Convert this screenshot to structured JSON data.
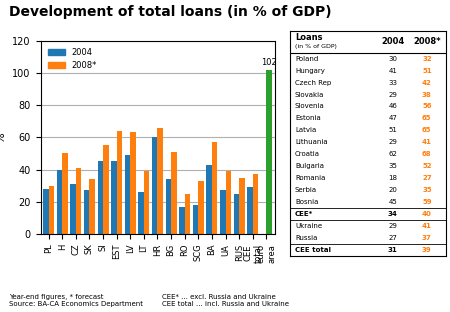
{
  "chart_data": {
    "type": "bar",
    "title": "Development of total loans (in % of GDP)",
    "ylabel": "%",
    "categories": [
      "PL",
      "H",
      "CZ",
      "SK",
      "SI",
      "EST",
      "LV",
      "LT",
      "HR",
      "BG",
      "RO",
      "SCG",
      "BA",
      "UA",
      "RUS",
      "CEE\ntotal",
      "euro\narea"
    ],
    "series": [
      {
        "name": "2004",
        "color": "#1f77b4",
        "values": [
          28,
          40,
          31,
          27,
          45,
          45,
          49,
          26,
          60,
          34,
          17,
          18,
          43,
          27,
          25,
          29,
          0
        ]
      },
      {
        "name": "2008*",
        "color": "#ff7f0e",
        "colors": [
          "#ff7f0e",
          "#ff7f0e",
          "#ff7f0e",
          "#ff7f0e",
          "#ff7f0e",
          "#ff7f0e",
          "#ff7f0e",
          "#ff7f0e",
          "#ff7f0e",
          "#ff7f0e",
          "#ff7f0e",
          "#ff7f0e",
          "#ff7f0e",
          "#ff7f0e",
          "#ff7f0e",
          "#ff7f0e",
          "#2ca02c"
        ],
        "values": [
          30,
          50,
          41,
          34,
          55,
          64,
          63,
          39,
          66,
          51,
          25,
          33,
          57,
          39,
          35,
          37,
          102
        ]
      }
    ],
    "ylim": [
      0,
      120
    ],
    "yticks": [
      0,
      20,
      40,
      60,
      80,
      100,
      120
    ],
    "grid": true,
    "legend": "upper left",
    "annotations": [
      {
        "text": "102",
        "x": "euro\narea",
        "y": 102
      }
    ],
    "notes": [
      "Year-end figures, * forecast\nSource: BA-CA Economics Department",
      "CEE* ... excl. Russia and Ukraine\nCEE total ... incl. Russia and Ukraine"
    ],
    "table": {
      "title": "Loans",
      "subtitle": "(in % of GDP)",
      "columns": [
        "2004",
        "2008*"
      ],
      "sections": [
        [
          [
            "Poland",
            30,
            32
          ],
          [
            "Hungary",
            41,
            51
          ],
          [
            "Czech Rep",
            33,
            42
          ],
          [
            "Slovakia",
            29,
            38
          ],
          [
            "Slovenia",
            46,
            56
          ],
          [
            "Estonia",
            47,
            65
          ],
          [
            "Latvia",
            51,
            65
          ],
          [
            "Lithuania",
            29,
            41
          ],
          [
            "Croatia",
            62,
            68
          ],
          [
            "Bulgaria",
            35,
            52
          ],
          [
            "Romania",
            18,
            27
          ],
          [
            "Serbia",
            20,
            35
          ],
          [
            "Bosnia",
            45,
            59
          ]
        ],
        [
          [
            "CEE*",
            34,
            40
          ]
        ],
        [
          [
            "Ukraine",
            29,
            41
          ],
          [
            "Russia",
            27,
            37
          ]
        ],
        [
          [
            "CEE total",
            31,
            39
          ]
        ]
      ]
    }
  }
}
